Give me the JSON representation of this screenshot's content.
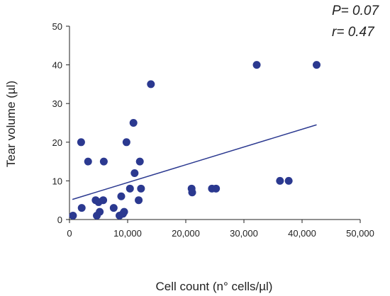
{
  "chart_data": {
    "type": "scatter",
    "xlabel": "Cell count (n° cells/µl)",
    "ylabel": "Tear volume (µl)",
    "xlim": [
      0,
      50000
    ],
    "ylim": [
      0,
      50
    ],
    "x_ticks": [
      0,
      10000,
      20000,
      30000,
      40000,
      50000
    ],
    "x_tick_labels": [
      "0",
      "10,000",
      "20,000",
      "30,000",
      "40,000",
      "50,000"
    ],
    "y_ticks": [
      0,
      10,
      20,
      30,
      40,
      50
    ],
    "y_tick_labels": [
      "0",
      "10",
      "20",
      "30",
      "40",
      "50"
    ],
    "grid": false,
    "annotations": [
      "P= 0.07",
      "r= 0.47"
    ],
    "point_color": "#2b3990",
    "line_color": "#2b3990",
    "points": [
      {
        "x": 600,
        "y": 1
      },
      {
        "x": 2000,
        "y": 20
      },
      {
        "x": 2100,
        "y": 3
      },
      {
        "x": 3200,
        "y": 15
      },
      {
        "x": 4500,
        "y": 5
      },
      {
        "x": 4700,
        "y": 1
      },
      {
        "x": 5000,
        "y": 4.5
      },
      {
        "x": 5200,
        "y": 2
      },
      {
        "x": 5800,
        "y": 5
      },
      {
        "x": 5900,
        "y": 15
      },
      {
        "x": 7600,
        "y": 3
      },
      {
        "x": 8600,
        "y": 1
      },
      {
        "x": 8900,
        "y": 6
      },
      {
        "x": 9200,
        "y": 1.5
      },
      {
        "x": 9400,
        "y": 2
      },
      {
        "x": 9800,
        "y": 20
      },
      {
        "x": 10400,
        "y": 8
      },
      {
        "x": 11000,
        "y": 25
      },
      {
        "x": 11200,
        "y": 12
      },
      {
        "x": 11900,
        "y": 5
      },
      {
        "x": 12100,
        "y": 15
      },
      {
        "x": 12300,
        "y": 8
      },
      {
        "x": 14000,
        "y": 35
      },
      {
        "x": 21000,
        "y": 8
      },
      {
        "x": 21100,
        "y": 7
      },
      {
        "x": 24500,
        "y": 8
      },
      {
        "x": 25200,
        "y": 8
      },
      {
        "x": 32200,
        "y": 40
      },
      {
        "x": 36200,
        "y": 10
      },
      {
        "x": 37700,
        "y": 10
      },
      {
        "x": 42500,
        "y": 40
      }
    ],
    "trendline": {
      "x": [
        500,
        42500
      ],
      "y": [
        5.2,
        24.5
      ]
    }
  }
}
